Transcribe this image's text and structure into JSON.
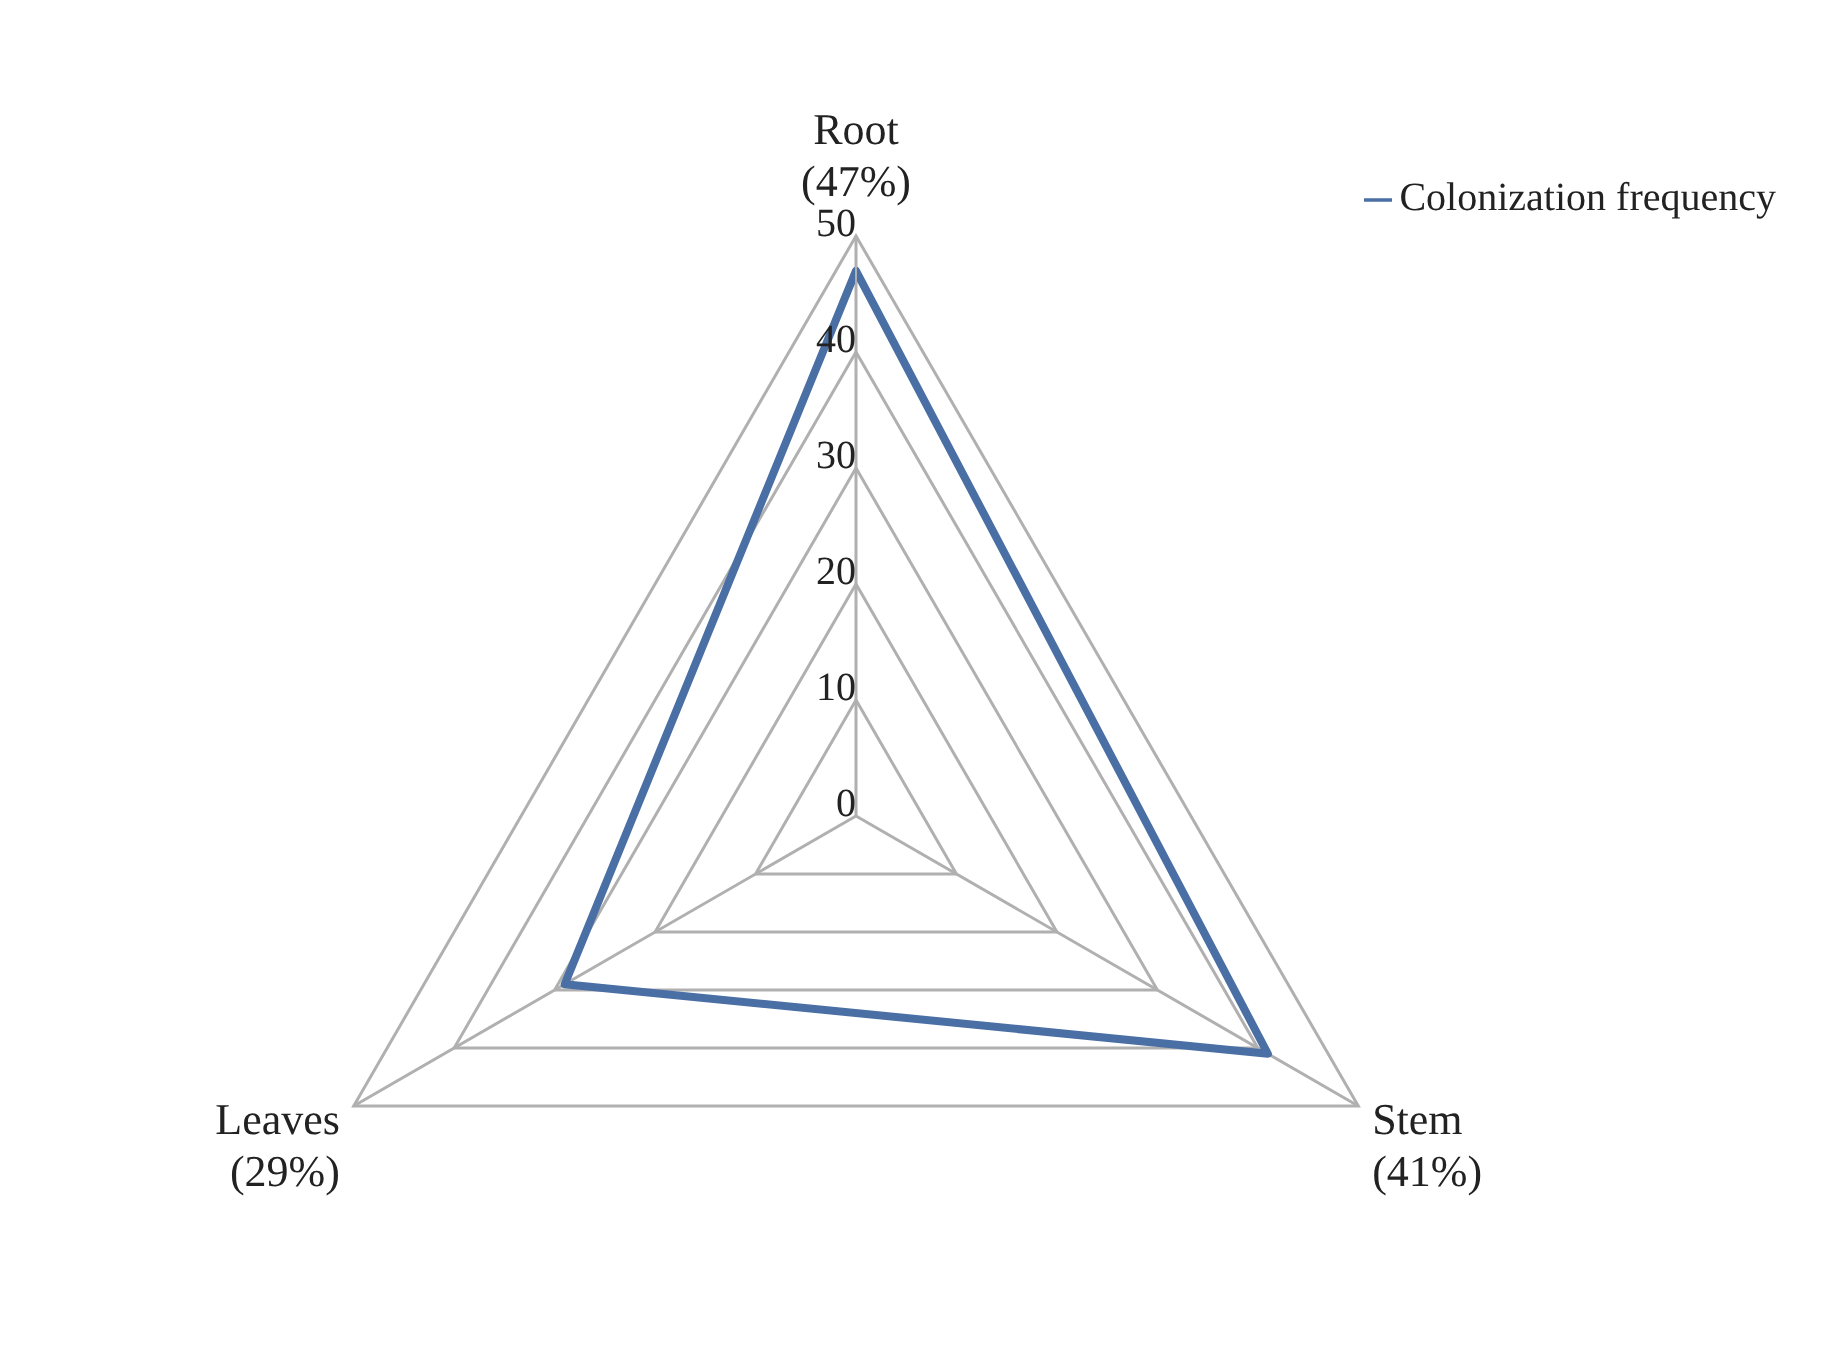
{
  "chart_data": {
    "type": "radar",
    "categories": [
      "Root\n(47%)",
      "Stem\n(41%)",
      "Leaves\n(29%)"
    ],
    "series": [
      {
        "name": "Colonization frequency",
        "color": "#4a6fa5",
        "values": [
          47,
          41,
          29
        ]
      }
    ],
    "ylim": [
      0,
      50
    ],
    "yticks": [
      0,
      10,
      20,
      30,
      40,
      50
    ],
    "grid": true,
    "legend": "top right",
    "marker": "none"
  }
}
